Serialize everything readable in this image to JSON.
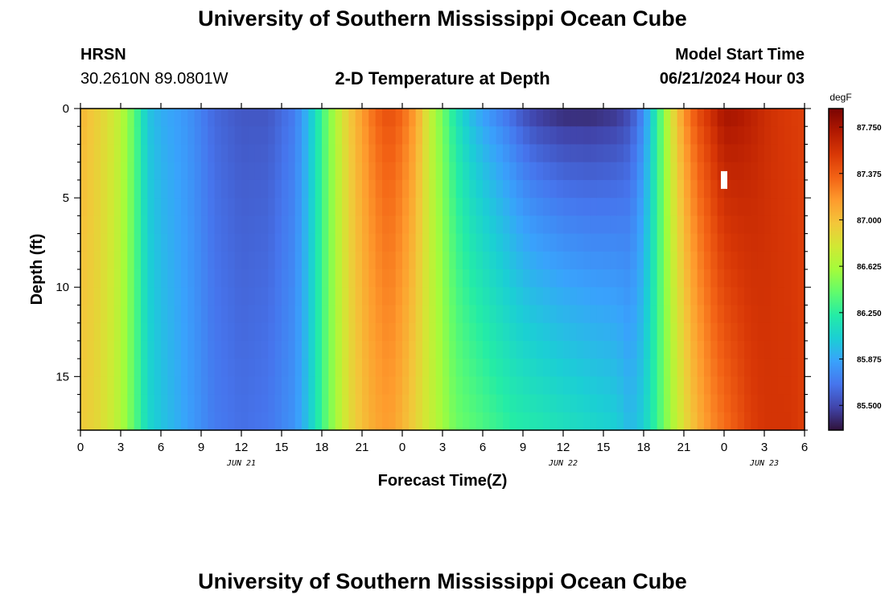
{
  "page": {
    "title": "University of Southern Mississippi Ocean Cube",
    "station": "HRSN",
    "coords": "30.2610N  89.0801W",
    "subtitle": "2-D Temperature at Depth",
    "start_label": "Model Start Time",
    "start_value": "06/21/2024 Hour 03",
    "footer_title": "University of Southern Mississippi Ocean Cube"
  },
  "chart_data": {
    "type": "heatmap",
    "title": "2-D Temperature at Depth",
    "xlabel": "Forecast Time(Z)",
    "ylabel": "Depth (ft)",
    "units": "degF",
    "x_tick_labels": [
      "0",
      "3",
      "6",
      "9",
      "12",
      "15",
      "18",
      "21",
      "0",
      "3",
      "6",
      "9",
      "12",
      "15",
      "18",
      "21",
      "0",
      "3",
      "6"
    ],
    "date_labels": [
      {
        "label": "JUN 21",
        "hour": 12
      },
      {
        "label": "JUN 22",
        "hour": 36
      },
      {
        "label": "JUN 23",
        "hour": 51
      }
    ],
    "x_range_hours": [
      0,
      54
    ],
    "y_ticks": [
      0,
      5,
      10,
      15
    ],
    "y_tick_labels": [
      "0",
      "5",
      "10",
      "15"
    ],
    "y_range_ft": [
      0,
      18
    ],
    "colorbar": {
      "label": "degF",
      "ticks": [
        87.75,
        87.375,
        87.0,
        86.625,
        86.25,
        85.875,
        85.5
      ],
      "tick_labels": [
        "87.750",
        "87.375",
        "87.000",
        "86.625",
        "86.250",
        "85.875",
        "85.500"
      ],
      "range": [
        85.3,
        87.9
      ]
    },
    "colormap": [
      "#30123b",
      "#4145ab",
      "#4675ed",
      "#39a2fc",
      "#1bcfd4",
      "#24eca6",
      "#61fc6c",
      "#a4fc3b",
      "#d1e834",
      "#f3c63a",
      "#fe9b2d",
      "#f36315",
      "#d93806",
      "#b11901",
      "#7a0403"
    ],
    "time_hours": [
      0,
      1,
      2,
      3,
      4,
      5,
      6,
      8,
      10,
      12,
      14,
      16,
      17,
      18,
      19,
      20,
      21,
      22,
      23,
      24,
      25,
      26,
      27,
      28,
      29,
      30,
      31,
      32,
      33,
      34,
      36,
      38,
      40,
      41,
      42,
      43,
      44,
      45,
      46,
      47,
      48,
      49,
      50,
      51,
      52,
      53,
      54
    ],
    "surface_temp": [
      87.05,
      86.95,
      86.85,
      86.7,
      86.4,
      86.0,
      85.9,
      85.8,
      85.62,
      85.55,
      85.55,
      85.7,
      85.95,
      86.3,
      86.65,
      86.95,
      87.15,
      87.35,
      87.45,
      87.35,
      87.15,
      86.75,
      86.45,
      86.15,
      85.95,
      85.82,
      85.72,
      85.62,
      85.5,
      85.42,
      85.35,
      85.35,
      85.4,
      85.5,
      85.75,
      86.25,
      86.8,
      87.2,
      87.45,
      87.6,
      87.78,
      87.75,
      87.68,
      87.6,
      87.55,
      87.52,
      87.5
    ],
    "bottom_temp": [
      86.95,
      86.9,
      86.8,
      86.65,
      86.4,
      86.1,
      86.0,
      85.85,
      85.7,
      85.65,
      85.68,
      85.8,
      86.0,
      86.3,
      86.6,
      86.85,
      87.0,
      87.1,
      87.15,
      87.05,
      86.9,
      86.75,
      86.6,
      86.45,
      86.4,
      86.35,
      86.3,
      86.25,
      86.22,
      86.2,
      86.15,
      86.1,
      86.05,
      85.95,
      86.05,
      86.3,
      86.6,
      86.85,
      87.05,
      87.2,
      87.3,
      87.4,
      87.5,
      87.55,
      87.55,
      87.55,
      87.5
    ],
    "missing_value_marker": {
      "hour": 48,
      "depth_ft": 4
    }
  }
}
